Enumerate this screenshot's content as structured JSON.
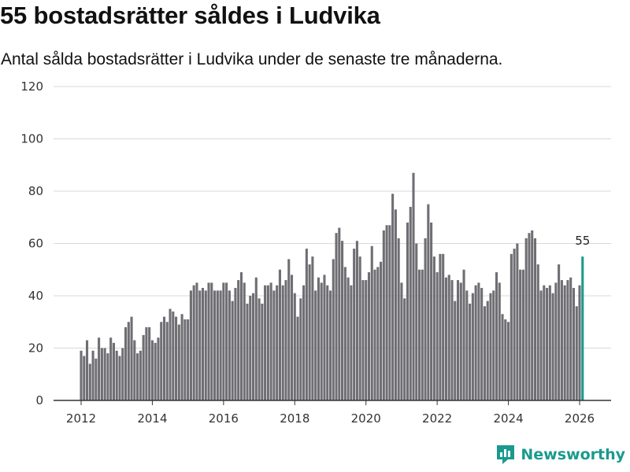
{
  "header": {
    "title": "55 bostadsrätter såldes i Ludvika",
    "subtitle": "Antal sålda bostadsrätter i Ludvika under de senaste tre månaderna."
  },
  "brand": {
    "name": "Newsworthy",
    "icon": "newsworthy-logo-icon"
  },
  "colors": {
    "bar": "#6f6e73",
    "highlight": "#1a9a8e",
    "grid": "#d9d9d9",
    "axis": "#333333"
  },
  "chart_data": {
    "type": "bar",
    "title": "55 bostadsrätter såldes i Ludvika",
    "xlabel": "",
    "ylabel": "",
    "ylim": [
      0,
      120
    ],
    "yticks": [
      0,
      20,
      40,
      60,
      80,
      100,
      120
    ],
    "xticks": [
      2012,
      2014,
      2016,
      2018,
      2020,
      2022,
      2024,
      2026
    ],
    "x_start": 2012,
    "step": 0.0833333,
    "grid": true,
    "legend": "none",
    "highlight_label": "55",
    "values": [
      19,
      17,
      23,
      14,
      19,
      16,
      24,
      20,
      20,
      18,
      24,
      22,
      19,
      17,
      20,
      28,
      30,
      32,
      23,
      18,
      19,
      25,
      28,
      28,
      23,
      22,
      24,
      30,
      32,
      30,
      35,
      34,
      32,
      29,
      33,
      31,
      31,
      42,
      44,
      45,
      42,
      43,
      42,
      45,
      45,
      42,
      42,
      42,
      45,
      45,
      42,
      38,
      43,
      46,
      49,
      45,
      37,
      40,
      41,
      47,
      39,
      37,
      44,
      44,
      45,
      42,
      44,
      50,
      44,
      46,
      54,
      48,
      41,
      32,
      39,
      44,
      58,
      52,
      55,
      42,
      47,
      45,
      48,
      44,
      42,
      54,
      64,
      66,
      61,
      51,
      47,
      44,
      58,
      61,
      55,
      46,
      46,
      49,
      59,
      50,
      51,
      53,
      65,
      67,
      67,
      79,
      73,
      62,
      45,
      39,
      68,
      74,
      87,
      60,
      50,
      50,
      62,
      75,
      68,
      55,
      49,
      56,
      56,
      47,
      48,
      46,
      38,
      46,
      45,
      50,
      42,
      37,
      41,
      44,
      45,
      43,
      36,
      38,
      41,
      42,
      49,
      45,
      33,
      31,
      30,
      56,
      58,
      60,
      50,
      50,
      62,
      64,
      65,
      62,
      52,
      42,
      44,
      43,
      44,
      41,
      45,
      52,
      46,
      44,
      46,
      47,
      43,
      36,
      44,
      55
    ]
  }
}
